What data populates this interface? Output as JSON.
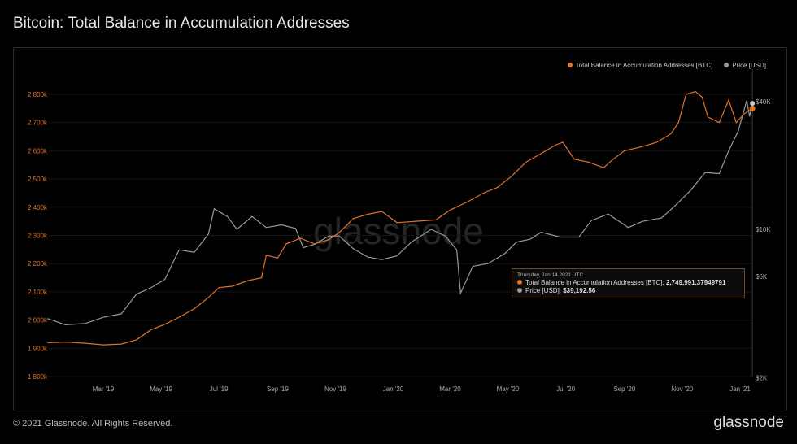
{
  "title": "Bitcoin: Total Balance in Accumulation Addresses",
  "footer": "© 2021 Glassnode. All Rights Reserved.",
  "logo": "glassnode",
  "watermark": "glassnode",
  "tooltip": {
    "date": "Thursday, Jan 14 2021 UTC",
    "line1": "Total Balance in Accumulation Addresses [BTC]: ",
    "value1": "2,749,991.37949791",
    "line2": "Price [USD]: ",
    "value2": "$39,192.56"
  },
  "chart_data": {
    "type": "line",
    "title": "Bitcoin: Total Balance in Accumulation Addresses",
    "legend_position": "top-right",
    "colors": {
      "balance": "#e0732a",
      "price": "#9a9a9a"
    },
    "x_ticks": [
      "Mar '19",
      "May '19",
      "Jul '19",
      "Sep '19",
      "Nov '19",
      "Jan '20",
      "Mar '20",
      "May '20",
      "Jul '20",
      "Sep '20",
      "Nov '20",
      "Jan '21"
    ],
    "x_tick_dates": [
      "2019-03-01",
      "2019-05-01",
      "2019-07-01",
      "2019-09-01",
      "2019-11-01",
      "2020-01-01",
      "2020-03-01",
      "2020-05-01",
      "2020-07-01",
      "2020-09-01",
      "2020-11-01",
      "2021-01-01"
    ],
    "y_left": {
      "ticks": [
        "1 800k",
        "1 900k",
        "2 000k",
        "2 100k",
        "2 200k",
        "2 300k",
        "2 400k",
        "2 500k",
        "2 600k",
        "2 700k",
        "2 800k"
      ],
      "range": [
        1800,
        2800
      ],
      "unit": "k BTC"
    },
    "y_right": {
      "scale": "log",
      "ticks": [
        "$2K",
        "$6K",
        "$10K",
        "$40K"
      ],
      "tick_values": [
        2000,
        6000,
        10000,
        40000
      ]
    },
    "series": [
      {
        "name": "Total Balance in Accumulation Addresses [BTC]",
        "unit": "k",
        "points": [
          [
            "2019-01-01",
            1920
          ],
          [
            "2019-01-20",
            1922
          ],
          [
            "2019-02-10",
            1918
          ],
          [
            "2019-03-01",
            1912
          ],
          [
            "2019-03-20",
            1915
          ],
          [
            "2019-04-05",
            1930
          ],
          [
            "2019-04-20",
            1965
          ],
          [
            "2019-05-05",
            1985
          ],
          [
            "2019-05-20",
            2010
          ],
          [
            "2019-06-05",
            2040
          ],
          [
            "2019-06-20",
            2080
          ],
          [
            "2019-07-01",
            2115
          ],
          [
            "2019-07-15",
            2120
          ],
          [
            "2019-08-01",
            2140
          ],
          [
            "2019-08-15",
            2150
          ],
          [
            "2019-08-20",
            2230
          ],
          [
            "2019-09-01",
            2220
          ],
          [
            "2019-09-10",
            2270
          ],
          [
            "2019-09-25",
            2290
          ],
          [
            "2019-10-10",
            2270
          ],
          [
            "2019-10-25",
            2285
          ],
          [
            "2019-11-05",
            2310
          ],
          [
            "2019-11-20",
            2360
          ],
          [
            "2019-12-05",
            2375
          ],
          [
            "2019-12-20",
            2385
          ],
          [
            "2020-01-05",
            2345
          ],
          [
            "2020-01-25",
            2350
          ],
          [
            "2020-02-15",
            2355
          ],
          [
            "2020-03-01",
            2390
          ],
          [
            "2020-03-20",
            2420
          ],
          [
            "2020-04-05",
            2450
          ],
          [
            "2020-04-20",
            2470
          ],
          [
            "2020-05-05",
            2510
          ],
          [
            "2020-05-20",
            2560
          ],
          [
            "2020-06-05",
            2590
          ],
          [
            "2020-06-20",
            2620
          ],
          [
            "2020-06-28",
            2630
          ],
          [
            "2020-07-10",
            2570
          ],
          [
            "2020-07-25",
            2560
          ],
          [
            "2020-08-10",
            2540
          ],
          [
            "2020-08-20",
            2570
          ],
          [
            "2020-09-01",
            2600
          ],
          [
            "2020-09-20",
            2615
          ],
          [
            "2020-10-05",
            2630
          ],
          [
            "2020-10-20",
            2660
          ],
          [
            "2020-10-28",
            2700
          ],
          [
            "2020-11-05",
            2800
          ],
          [
            "2020-11-15",
            2810
          ],
          [
            "2020-11-22",
            2790
          ],
          [
            "2020-11-28",
            2720
          ],
          [
            "2020-12-10",
            2700
          ],
          [
            "2020-12-20",
            2780
          ],
          [
            "2020-12-28",
            2700
          ],
          [
            "2021-01-05",
            2730
          ],
          [
            "2021-01-14",
            2750
          ]
        ]
      },
      {
        "name": "Price [USD]",
        "unit": "USD",
        "points": [
          [
            "2019-01-01",
            3800
          ],
          [
            "2019-01-20",
            3550
          ],
          [
            "2019-02-10",
            3600
          ],
          [
            "2019-03-01",
            3850
          ],
          [
            "2019-03-20",
            4000
          ],
          [
            "2019-04-05",
            4950
          ],
          [
            "2019-04-20",
            5300
          ],
          [
            "2019-05-05",
            5800
          ],
          [
            "2019-05-20",
            8000
          ],
          [
            "2019-06-05",
            7800
          ],
          [
            "2019-06-20",
            9500
          ],
          [
            "2019-06-26",
            12500
          ],
          [
            "2019-07-10",
            11500
          ],
          [
            "2019-07-20",
            10000
          ],
          [
            "2019-08-05",
            11500
          ],
          [
            "2019-08-20",
            10200
          ],
          [
            "2019-09-05",
            10500
          ],
          [
            "2019-09-20",
            10100
          ],
          [
            "2019-09-28",
            8200
          ],
          [
            "2019-10-10",
            8500
          ],
          [
            "2019-10-25",
            9300
          ],
          [
            "2019-11-05",
            9300
          ],
          [
            "2019-11-20",
            8100
          ],
          [
            "2019-12-05",
            7400
          ],
          [
            "2019-12-20",
            7200
          ],
          [
            "2020-01-05",
            7500
          ],
          [
            "2020-01-20",
            8700
          ],
          [
            "2020-02-10",
            10000
          ],
          [
            "2020-02-25",
            9300
          ],
          [
            "2020-03-08",
            8000
          ],
          [
            "2020-03-12",
            5000
          ],
          [
            "2020-03-25",
            6700
          ],
          [
            "2020-04-10",
            6900
          ],
          [
            "2020-04-28",
            7700
          ],
          [
            "2020-05-10",
            8700
          ],
          [
            "2020-05-25",
            9000
          ],
          [
            "2020-06-05",
            9700
          ],
          [
            "2020-06-25",
            9200
          ],
          [
            "2020-07-15",
            9200
          ],
          [
            "2020-07-28",
            11000
          ],
          [
            "2020-08-15",
            11800
          ],
          [
            "2020-09-05",
            10200
          ],
          [
            "2020-09-20",
            10900
          ],
          [
            "2020-10-10",
            11300
          ],
          [
            "2020-10-25",
            13000
          ],
          [
            "2020-11-10",
            15300
          ],
          [
            "2020-11-25",
            18500
          ],
          [
            "2020-12-10",
            18300
          ],
          [
            "2020-12-20",
            23500
          ],
          [
            "2020-12-30",
            29000
          ],
          [
            "2021-01-08",
            40500
          ],
          [
            "2021-01-11",
            34000
          ],
          [
            "2021-01-14",
            39192.56
          ]
        ]
      }
    ]
  }
}
